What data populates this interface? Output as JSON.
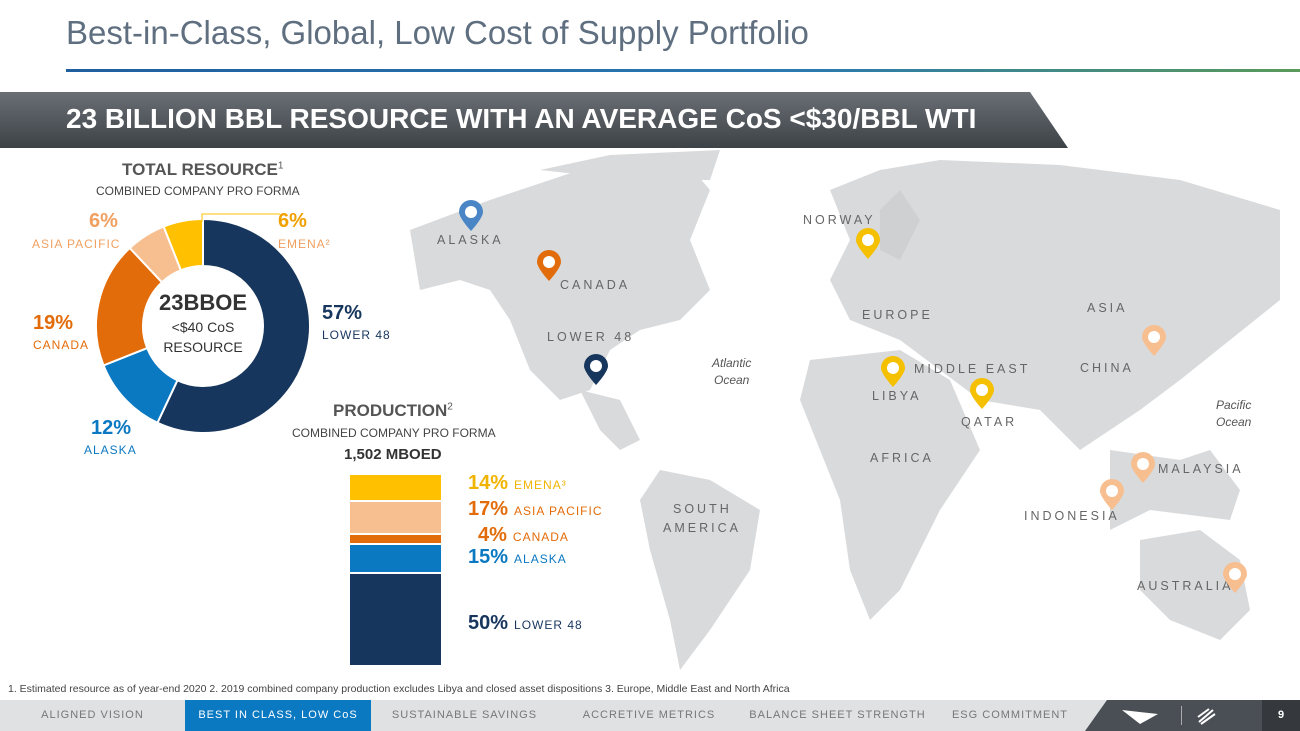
{
  "title": "Best-in-Class, Global, Low Cost of Supply Portfolio",
  "banner": "23 BILLION BBL RESOURCE WITH AN AVERAGE CoS <$30/BBL WTI",
  "resource": {
    "heading": "TOTAL RESOURCE",
    "sup": "1",
    "subheading": "COMBINED COMPANY PRO FORMA",
    "center_big": "23BBOE",
    "center_line1": "<$40 CoS",
    "center_line2": "RESOURCE"
  },
  "production": {
    "heading": "PRODUCTION",
    "sup": "2",
    "subheading": "COMBINED COMPANY PRO FORMA",
    "total": "1,502 MBOED"
  },
  "chart_data": [
    {
      "type": "pie",
      "title": "TOTAL RESOURCE",
      "donut": true,
      "slices": [
        {
          "label": "LOWER 48",
          "value": 57,
          "pct": "57%",
          "color": "#17365d"
        },
        {
          "label": "ALASKA",
          "value": 12,
          "pct": "12%",
          "color": "#0b78c2"
        },
        {
          "label": "CANADA",
          "value": 19,
          "pct": "19%",
          "color": "#e36c0a"
        },
        {
          "label": "ASIA PACIFIC",
          "value": 6,
          "pct": "6%",
          "color": "#f7bf90"
        },
        {
          "label": "EMENA²",
          "value": 6,
          "pct": "6%",
          "color": "#ffc000"
        }
      ]
    },
    {
      "type": "bar",
      "stacked": true,
      "title": "PRODUCTION",
      "segments": [
        {
          "label": "EMENA³",
          "value": 14,
          "pct": "14%",
          "color": "#ffc000",
          "text": "#f0b400"
        },
        {
          "label": "ASIA PACIFIC",
          "value": 17,
          "pct": "17%",
          "color": "#f7bf90",
          "text": "#e36c0a"
        },
        {
          "label": "CANADA",
          "value": 4,
          "pct": "4%",
          "color": "#e36c0a",
          "text": "#e36c0a"
        },
        {
          "label": "ALASKA",
          "value": 15,
          "pct": "15%",
          "color": "#0b78c2",
          "text": "#0b78c2"
        },
        {
          "label": "LOWER 48",
          "value": 50,
          "pct": "50%",
          "color": "#17365d",
          "text": "#17365d"
        }
      ]
    }
  ],
  "map": {
    "labels": [
      "ALASKA",
      "CANADA",
      "LOWER 48",
      "NORWAY",
      "EUROPE",
      "MIDDLE EAST",
      "LIBYA",
      "QATAR",
      "AFRICA",
      "ASIA",
      "CHINA",
      "MALAYSIA",
      "INDONESIA",
      "AUSTRALIA",
      "SOUTH",
      "AMERICA"
    ],
    "oceans": [
      [
        "Atlantic",
        "Ocean"
      ],
      [
        "Pacific",
        "Ocean"
      ]
    ]
  },
  "footnote": "1. Estimated resource as of year-end 2020  2.  2019 combined company production excludes Libya and closed asset dispositions  3. Europe, Middle East and North Africa",
  "nav": [
    "ALIGNED VISION",
    "BEST IN CLASS, LOW CoS",
    "SUSTAINABLE SAVINGS",
    "ACCRETIVE METRICS",
    "BALANCE SHEET STRENGTH",
    "ESG COMMITMENT"
  ],
  "page": "9"
}
